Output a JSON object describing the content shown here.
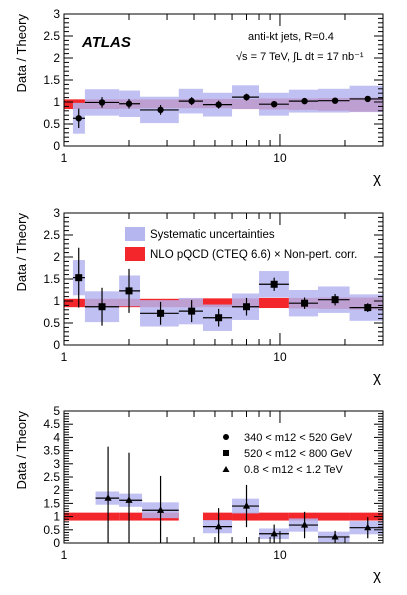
{
  "chart_data": [
    {
      "type": "scatter",
      "xlabel": "χ",
      "ylabel": "Data / Theory",
      "xscale": "log",
      "xlim": [
        1,
        30
      ],
      "ylim": [
        0,
        3
      ],
      "x_tick_labels": [
        "1",
        "10"
      ],
      "y_tick_labels": [
        "0",
        "0.5",
        "1",
        "1.5",
        "2",
        "2.5",
        "3"
      ],
      "atlas_label": "ATLAS",
      "annotations": [
        "anti-kt jets, R=0.4",
        "√s = 7 TeV, ∫L dt = 17 nb⁻¹"
      ],
      "colors": {
        "systematic": "#b5b5f0",
        "nlo": "#f2262b",
        "points": "#000000"
      },
      "bins": [
        [
          1.1,
          1.25
        ],
        [
          1.25,
          1.8
        ],
        [
          1.8,
          2.25
        ],
        [
          2.25,
          3.4
        ],
        [
          3.4,
          4.4
        ],
        [
          4.4,
          6.0
        ],
        [
          6.0,
          8.0
        ],
        [
          8.0,
          11.0
        ],
        [
          11.0,
          15.0
        ],
        [
          15.0,
          21.0
        ],
        [
          21.0,
          30.0
        ]
      ],
      "nlo_band": [
        0.84,
        0.84,
        0.85,
        0.86,
        0.86,
        0.86,
        0.84,
        0.83,
        0.82,
        0.8,
        0.78
      ],
      "nlo_band_upper": [
        1.06,
        1.06,
        1.06,
        1.06,
        1.07,
        1.07,
        1.07,
        1.08,
        1.08,
        1.09,
        1.1
      ],
      "series": [
        {
          "marker": "circle",
          "x": [
            1.17,
            1.5,
            2.0,
            2.8,
            3.9,
            5.2,
            7.0,
            9.4,
            13.0,
            18.0,
            25.5
          ],
          "y": [
            0.63,
            0.99,
            0.96,
            0.82,
            1.02,
            0.94,
            1.11,
            0.95,
            1.02,
            1.03,
            1.07
          ],
          "stat_err": [
            0.22,
            0.12,
            0.11,
            0.11,
            0.09,
            0.09,
            0.08,
            0.07,
            0.06,
            0.05,
            0.05
          ],
          "syst_err": [
            0.35,
            0.3,
            0.3,
            0.3,
            0.28,
            0.27,
            0.27,
            0.26,
            0.26,
            0.27,
            0.3
          ]
        }
      ]
    },
    {
      "type": "scatter",
      "xlabel": "χ",
      "ylabel": "Data / Theory",
      "xscale": "log",
      "xlim": [
        1,
        30
      ],
      "ylim": [
        0,
        3
      ],
      "x_tick_labels": [
        "1",
        "10"
      ],
      "y_tick_labels": [
        "0",
        "0.5",
        "1",
        "1.5",
        "2",
        "2.5",
        "3"
      ],
      "legend": [
        "Systematic uncertainties",
        "NLO pQCD (CTEQ 6.6) × Non-pert. corr."
      ],
      "legend_position": "top-right",
      "colors": {
        "systematic": "#b5b5f0",
        "nlo": "#f2262b",
        "points": "#000000"
      },
      "bins": [
        [
          1.1,
          1.25
        ],
        [
          1.25,
          1.8
        ],
        [
          1.8,
          2.25
        ],
        [
          2.25,
          3.4
        ],
        [
          3.4,
          4.4
        ],
        [
          4.4,
          6.0
        ],
        [
          6.0,
          8.0
        ],
        [
          8.0,
          11.0
        ],
        [
          11.0,
          15.0
        ],
        [
          15.0,
          21.0
        ],
        [
          21.0,
          30.0
        ]
      ],
      "nlo_band": [
        0.86,
        0.86,
        0.86,
        0.86,
        0.86,
        0.86,
        0.85,
        0.84,
        0.83,
        0.82,
        0.8
      ],
      "nlo_band_upper": [
        1.05,
        1.05,
        1.05,
        1.05,
        1.05,
        1.06,
        1.06,
        1.07,
        1.07,
        1.08,
        1.08
      ],
      "series": [
        {
          "marker": "square",
          "x": [
            1.17,
            1.5,
            2.0,
            2.8,
            3.9,
            5.2,
            7.0,
            9.4,
            13.0,
            18.0,
            25.5
          ],
          "y": [
            1.53,
            0.87,
            1.23,
            0.72,
            0.77,
            0.62,
            0.87,
            1.38,
            0.95,
            1.03,
            0.85
          ],
          "stat_err": [
            0.68,
            0.43,
            0.5,
            0.26,
            0.25,
            0.2,
            0.2,
            0.15,
            0.13,
            0.13,
            0.1
          ],
          "syst_err": [
            0.4,
            0.35,
            0.35,
            0.3,
            0.3,
            0.3,
            0.3,
            0.3,
            0.3,
            0.3,
            0.3
          ]
        }
      ]
    },
    {
      "type": "scatter",
      "xlabel": "χ",
      "ylabel": "Data / Theory",
      "xscale": "log",
      "xlim": [
        1,
        30
      ],
      "ylim": [
        0,
        5
      ],
      "x_tick_labels": [
        "1",
        "10"
      ],
      "y_tick_labels": [
        "0",
        "0.5",
        "1",
        "1.5",
        "2",
        "2.5",
        "3",
        "3.5",
        "4",
        "4.5",
        "5"
      ],
      "legend": [
        "340 < m12 < 520 GeV",
        "520 < m12 < 800 GeV",
        "0.8 < m12 < 1.2 TeV"
      ],
      "legend_position": "top-right",
      "colors": {
        "systematic": "#b5b5f0",
        "nlo": "#f2262b",
        "points": "#000000"
      },
      "bins": [
        [
          1.4,
          1.8
        ],
        [
          1.8,
          2.3
        ],
        [
          2.3,
          3.4
        ],
        [
          4.4,
          6.0
        ],
        [
          6.0,
          8.0
        ],
        [
          8.0,
          11.0
        ],
        [
          11.0,
          15.0
        ],
        [
          15.0,
          21.0
        ],
        [
          21.0,
          30.0
        ]
      ],
      "nlo_band": [
        0.85,
        0.85,
        0.85,
        0.85,
        0.85,
        0.85,
        0.85,
        0.85,
        0.85
      ],
      "nlo_band_upper": [
        1.15,
        1.15,
        1.15,
        1.15,
        1.15,
        1.15,
        1.15,
        1.15,
        1.15
      ],
      "series": [
        {
          "marker": "triangle",
          "x": [
            1.6,
            2.0,
            2.8,
            5.2,
            7.0,
            9.4,
            13.0,
            18.0,
            25.5
          ],
          "y": [
            1.7,
            1.62,
            1.24,
            0.62,
            1.4,
            0.35,
            0.68,
            0.23,
            0.58
          ],
          "stat_err": [
            1.95,
            1.8,
            1.3,
            0.7,
            0.8,
            0.35,
            0.5,
            0.23,
            0.4
          ],
          "syst_err": [
            0.25,
            0.25,
            0.3,
            0.25,
            0.28,
            0.2,
            0.25,
            0.2,
            0.25
          ]
        }
      ]
    }
  ]
}
